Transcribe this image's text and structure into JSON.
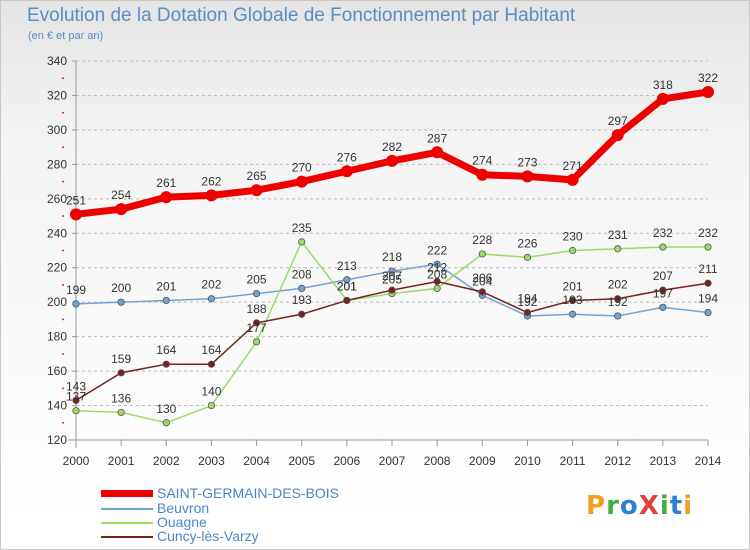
{
  "title": "Evolution de la Dotation Globale de Fonctionnement par Habitant",
  "subtitle": "(en € et par an)",
  "logo": {
    "text": "ProXiti",
    "colors": [
      "#f0a020",
      "#40b040",
      "#3080d0",
      "#e04040",
      "#40b040",
      "#3080d0",
      "#f0a020"
    ]
  },
  "colors": {
    "title": "#5a8fc4",
    "axis": "#999999",
    "grid": "#bbbbbb",
    "tick_minor": "#d33333"
  },
  "chart_data": {
    "type": "line",
    "title": "Evolution de la Dotation Globale de Fonctionnement par Habitant",
    "subtitle": "(en € et par an)",
    "x": [
      2000,
      2001,
      2002,
      2003,
      2004,
      2005,
      2006,
      2007,
      2008,
      2009,
      2010,
      2011,
      2012,
      2013,
      2014
    ],
    "ylim": [
      120,
      340
    ],
    "yticks": [
      120,
      140,
      160,
      180,
      200,
      220,
      240,
      260,
      280,
      300,
      320,
      340
    ],
    "grid": "horizontal dashed",
    "legend_position": "bottom-left",
    "series": [
      {
        "name": "SAINT-GERMAIN-DES-BOIS",
        "color": "#ee0000",
        "width": 7,
        "marker": 6,
        "values": [
          251,
          254,
          261,
          262,
          265,
          270,
          276,
          282,
          287,
          274,
          273,
          271,
          297,
          318,
          322
        ]
      },
      {
        "name": "Beuvron",
        "color": "#6fa3d4",
        "width": 1.5,
        "marker": 3.2,
        "values": [
          199,
          200,
          201,
          202,
          205,
          208,
          213,
          218,
          222,
          204,
          192,
          193,
          192,
          197,
          194
        ]
      },
      {
        "name": "Ouagne",
        "color": "#99dd66",
        "width": 1.5,
        "marker": 3.2,
        "values": [
          137,
          136,
          130,
          140,
          177,
          235,
          201,
          205,
          208,
          228,
          226,
          230,
          231,
          232,
          232
        ]
      },
      {
        "name": "Cuncy-lès-Varzy",
        "color": "#7a2020",
        "width": 1.5,
        "marker": 3.2,
        "values": [
          143,
          159,
          164,
          164,
          188,
          193,
          201,
          207,
          212,
          206,
          194,
          201,
          202,
          207,
          211
        ]
      }
    ]
  }
}
